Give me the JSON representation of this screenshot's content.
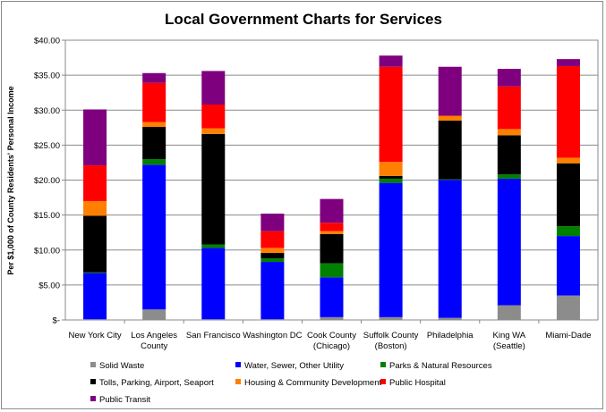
{
  "chart_data": {
    "type": "bar",
    "stacked": true,
    "title": "Local Government Charts for Services",
    "ylabel": "Per $1,000 of County Residents' Personal Income",
    "xlabel": "",
    "ylim": [
      0,
      40
    ],
    "yticks": [
      {
        "value": 0,
        "label": "$-"
      },
      {
        "value": 5,
        "label": "$5.00"
      },
      {
        "value": 10,
        "label": "$10.00"
      },
      {
        "value": 15,
        "label": "$15.00"
      },
      {
        "value": 20,
        "label": "$20.00"
      },
      {
        "value": 25,
        "label": "$25.00"
      },
      {
        "value": 30,
        "label": "$30.00"
      },
      {
        "value": 35,
        "label": "$35.00"
      },
      {
        "value": 40,
        "label": "$40.00"
      }
    ],
    "grid": true,
    "legend_position": "bottom",
    "categories": [
      [
        "New York City"
      ],
      [
        "Los Angeles",
        "County"
      ],
      [
        "San Francisco"
      ],
      [
        "Washington DC"
      ],
      [
        "Cook County",
        "(Chicago)"
      ],
      [
        "Suffolk County",
        "(Boston)"
      ],
      [
        "Philadelphia"
      ],
      [
        "King WA",
        "(Seattle)"
      ],
      [
        "Miami-Dade"
      ]
    ],
    "series": [
      {
        "name": "Solid Waste",
        "color": "#8c8c8c",
        "values": [
          0.1,
          1.5,
          0.1,
          0.1,
          0.4,
          0.4,
          0.3,
          2.1,
          3.5
        ]
      },
      {
        "name": "Water, Sewer, Other Utility",
        "color": "#0000ff",
        "values": [
          6.6,
          20.7,
          10.2,
          8.2,
          5.7,
          19.2,
          19.7,
          18.1,
          8.5
        ]
      },
      {
        "name": "Parks & Natural Resources",
        "color": "#008000",
        "values": [
          0.1,
          0.8,
          0.5,
          0.5,
          2.0,
          0.6,
          0.1,
          0.6,
          1.4
        ]
      },
      {
        "name": "Tolls, Parking, Airport, Seaport",
        "color": "#000000",
        "values": [
          8.1,
          4.6,
          15.8,
          0.8,
          4.2,
          0.4,
          8.4,
          5.6,
          9.0
        ]
      },
      {
        "name": "Housing & Community Development",
        "color": "#ff7f00",
        "values": [
          2.1,
          0.7,
          0.8,
          0.7,
          0.4,
          2.0,
          0.7,
          0.9,
          0.8
        ]
      },
      {
        "name": "Public Hospital",
        "color": "#ff0000",
        "values": [
          5.1,
          5.6,
          3.4,
          2.4,
          1.2,
          13.6,
          0.0,
          6.1,
          13.1
        ]
      },
      {
        "name": "Public Transit",
        "color": "#7f007f",
        "values": [
          8.0,
          1.4,
          4.8,
          2.5,
          3.4,
          1.6,
          7.0,
          2.5,
          1.0
        ]
      }
    ]
  }
}
